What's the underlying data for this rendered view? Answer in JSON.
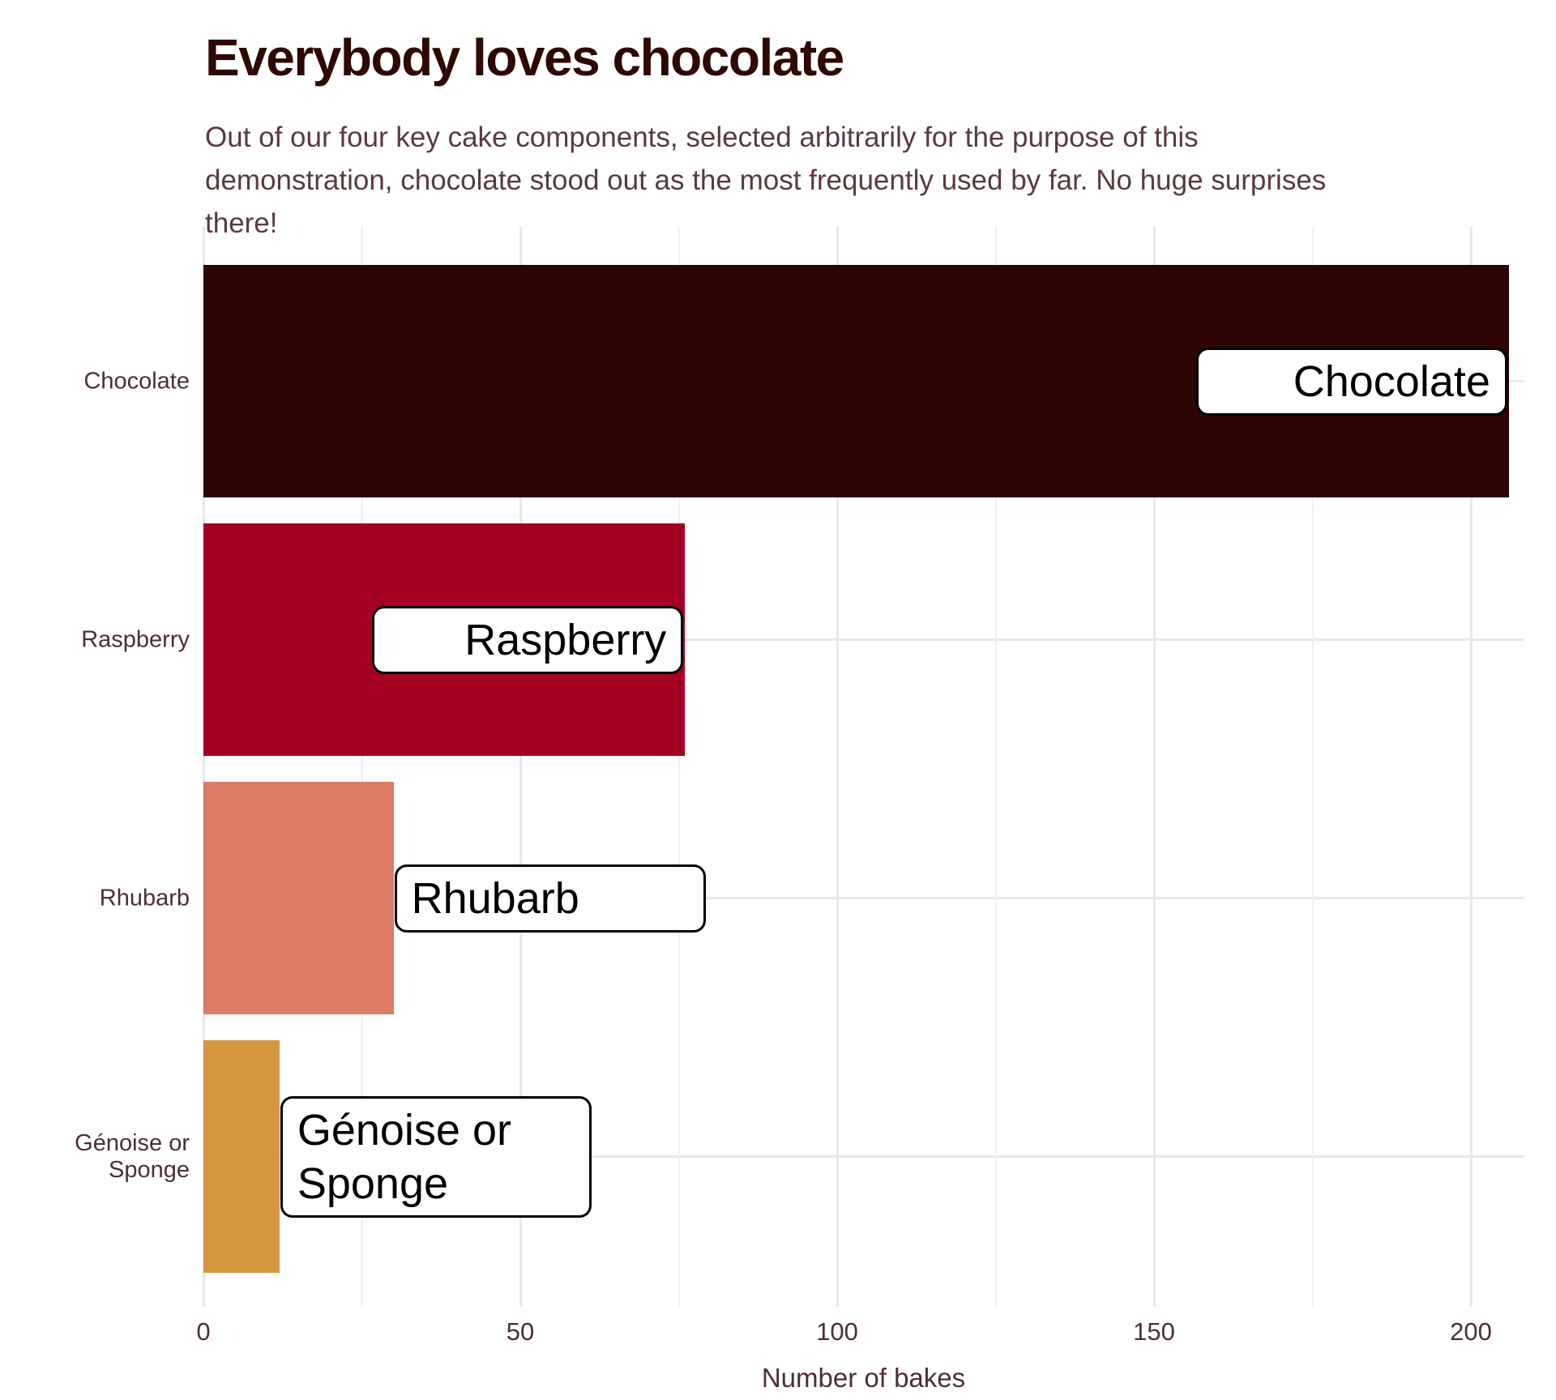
{
  "header": {
    "title": "Everybody loves chocolate",
    "subtitle_lines": [
      "Out of our four key cake components, selected arbitrarily for the purpose of this",
      "demonstration, chocolate stood out as the most frequently used by far. No huge surprises",
      "there!"
    ]
  },
  "chart_data": {
    "type": "bar",
    "orientation": "horizontal",
    "title": "Everybody loves chocolate",
    "subtitle": "Out of our four key cake components, selected arbitrarily for the purpose of this demonstration, chocolate stood out as the most frequently used by far. No huge surprises there!",
    "xlabel": "Number of bakes",
    "ylabel": "",
    "categories": [
      "Chocolate",
      "Raspberry",
      "Rhubarb",
      "Génoise or Sponge"
    ],
    "values": [
      206,
      76,
      30,
      12
    ],
    "bar_labels": [
      "Chocolate",
      "Raspberry",
      "Rhubarb",
      "Génoise or Sponge"
    ],
    "label_placement": [
      "inside-end",
      "inside-end",
      "outside-end",
      "outside-end"
    ],
    "bar_colors": [
      "#2e0503",
      "#a50023",
      "#dc7b66",
      "#d4963e"
    ],
    "x_ticks": [
      0,
      50,
      100,
      150,
      200
    ],
    "x_minor_ticks": [
      25,
      75,
      125,
      175
    ],
    "xlim": [
      0,
      210
    ],
    "grid": "vertical major+minor, horizontal at category centers",
    "legend": "none",
    "colors": {
      "title_text": "#2e0802",
      "subtitle_text": "#5a3a3e",
      "axis_text": "#4c2f33",
      "grid_major": "#e8e8e8",
      "grid_minor": "#f1f1f1",
      "label_box_bg": "#ffffff",
      "label_box_border": "#000000",
      "label_box_text": "#000000",
      "background": "#ffffff"
    }
  }
}
